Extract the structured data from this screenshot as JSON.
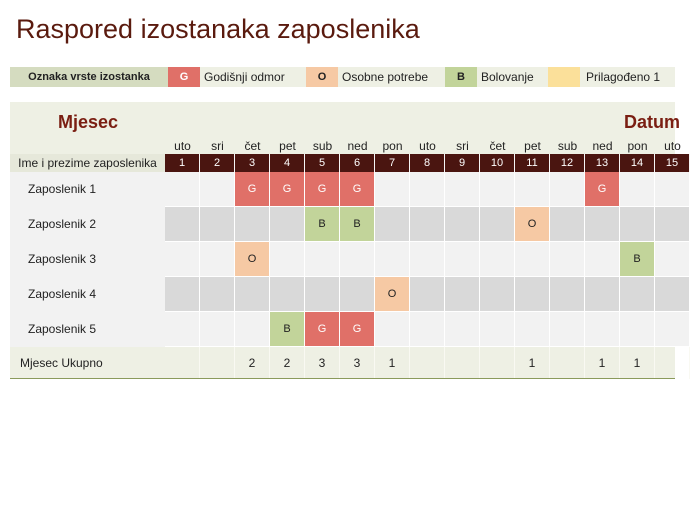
{
  "title": "Raspored izostanaka zaposlenika",
  "legend": {
    "label": "Oznaka vrste izostanka",
    "items": [
      {
        "code": "G",
        "text": "Godišnji odmor",
        "color": "#e07068",
        "textColor": "#ffffff"
      },
      {
        "code": "O",
        "text": "Osobne potrebe",
        "color": "#f6c9a4",
        "textColor": "#222222"
      },
      {
        "code": "B",
        "text": "Bolovanje",
        "color": "#c2d49a",
        "textColor": "#222222"
      },
      {
        "code": "",
        "text": "Prilagođeno 1",
        "color": "#fbe09a",
        "textColor": "#222222"
      }
    ]
  },
  "calendar": {
    "month_label": "Mjesec",
    "date_label": "Datum",
    "name_header": "Ime i prezime zaposlenika",
    "weekdays": [
      "uto",
      "sri",
      "čet",
      "pet",
      "sub",
      "ned",
      "pon",
      "uto",
      "sri",
      "čet",
      "pet",
      "sub",
      "ned",
      "pon",
      "uto"
    ],
    "days": [
      "1",
      "2",
      "3",
      "4",
      "5",
      "6",
      "7",
      "8",
      "9",
      "10",
      "11",
      "12",
      "13",
      "14",
      "15"
    ],
    "employees": [
      {
        "name": "Zaposlenik 1",
        "marks": [
          "",
          "",
          "G",
          "G",
          "G",
          "G",
          "",
          "",
          "",
          "",
          "",
          "",
          "G",
          "",
          ""
        ]
      },
      {
        "name": "Zaposlenik 2",
        "marks": [
          "",
          "",
          "",
          "",
          "B",
          "B",
          "",
          "",
          "",
          "",
          "O",
          "",
          "",
          "",
          ""
        ]
      },
      {
        "name": "Zaposlenik 3",
        "marks": [
          "",
          "",
          "O",
          "",
          "",
          "",
          "",
          "",
          "",
          "",
          "",
          "",
          "",
          "B",
          ""
        ]
      },
      {
        "name": "Zaposlenik 4",
        "marks": [
          "",
          "",
          "",
          "",
          "",
          "",
          "O",
          "",
          "",
          "",
          "",
          "",
          "",
          "",
          ""
        ]
      },
      {
        "name": "Zaposlenik 5",
        "marks": [
          "",
          "",
          "",
          "B",
          "G",
          "G",
          "",
          "",
          "",
          "",
          "",
          "",
          "",
          "",
          ""
        ]
      }
    ],
    "total_label": "Mjesec Ukupno",
    "totals": [
      "",
      "",
      "2",
      "2",
      "3",
      "3",
      "1",
      "",
      "",
      "",
      "1",
      "",
      "1",
      "1",
      ""
    ]
  },
  "colors": {
    "title": "#5a1a0e",
    "day_header": "#4a1510",
    "panel_bg": "#eef0e4",
    "row_light": "#f2f2f2",
    "row_dark": "#d9d9d9"
  }
}
